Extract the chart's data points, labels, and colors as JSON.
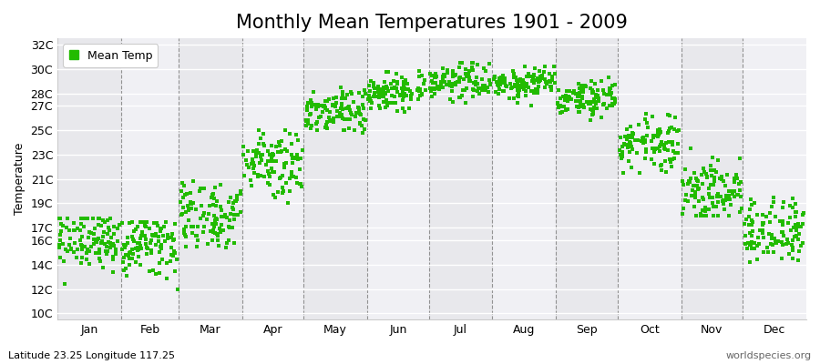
{
  "title": "Monthly Mean Temperatures 1901 - 2009",
  "ylabel": "Temperature",
  "xlabel_labels": [
    "Jan",
    "Feb",
    "Mar",
    "Apr",
    "May",
    "Jun",
    "Jul",
    "Aug",
    "Sep",
    "Oct",
    "Nov",
    "Dec"
  ],
  "ytick_labels": [
    "10C",
    "12C",
    "14C",
    "16C",
    "17C",
    "19C",
    "21C",
    "23C",
    "25C",
    "27C",
    "28C",
    "30C",
    "32C"
  ],
  "ytick_values": [
    10,
    12,
    14,
    16,
    17,
    19,
    21,
    23,
    25,
    27,
    28,
    30,
    32
  ],
  "ylim": [
    9.5,
    32.5
  ],
  "dot_color": "#22bb00",
  "dot_size": 5,
  "background_color": "#ffffff",
  "band_color_odd": "#e8e8ec",
  "band_color_even": "#f0f0f4",
  "legend_label": "Mean Temp",
  "footnote_left": "Latitude 23.25 Longitude 117.25",
  "footnote_right": "worldspecies.org",
  "title_fontsize": 15,
  "label_fontsize": 9,
  "tick_fontsize": 9,
  "num_years": 109,
  "monthly_means": [
    16.0,
    15.5,
    18.0,
    22.5,
    26.5,
    28.2,
    29.0,
    28.8,
    27.5,
    24.0,
    20.0,
    16.8
  ],
  "monthly_stds": [
    1.2,
    1.3,
    1.5,
    1.4,
    1.0,
    0.8,
    0.7,
    0.7,
    0.8,
    1.1,
    1.4,
    1.3
  ],
  "monthly_mins": [
    11.8,
    10.5,
    13.5,
    19.0,
    23.5,
    26.5,
    27.2,
    27.0,
    25.8,
    21.5,
    18.0,
    14.0
  ],
  "monthly_maxs": [
    17.8,
    17.5,
    22.0,
    25.0,
    28.5,
    29.8,
    30.5,
    30.2,
    29.5,
    27.5,
    23.5,
    19.5
  ],
  "month_days": [
    31,
    28,
    31,
    30,
    31,
    30,
    31,
    31,
    30,
    31,
    30,
    31
  ]
}
